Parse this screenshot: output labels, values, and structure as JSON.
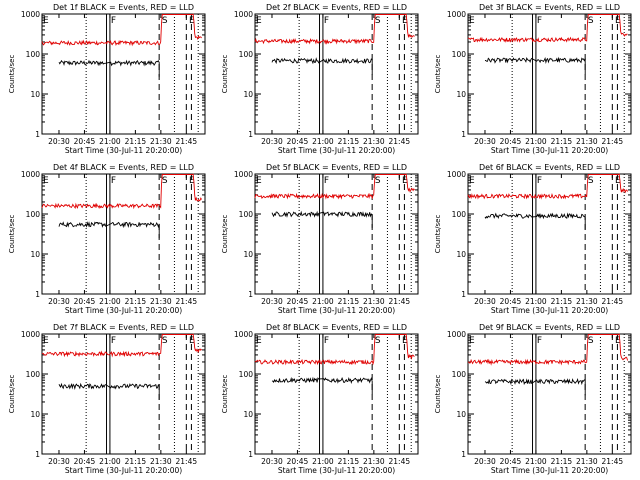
{
  "figure": {
    "background": "#ffffff",
    "axis_color": "#000000",
    "events_color": "#000000",
    "lld_color": "#e00000"
  },
  "chart_data": [
    {
      "type": "line",
      "title": "Det 1f BLACK = Events, RED = LLD",
      "xlabel": "Start Time (30-Jul-11 20:20:00)",
      "ylabel": "Counts/sec",
      "yscale": "log",
      "ylim": [
        1,
        1000
      ],
      "xticks": [
        "20:30",
        "20:45",
        "21:00",
        "21:15",
        "21:30",
        "21:45"
      ],
      "markers": {
        "dotted": [
          "20:46",
          "21:38",
          "21:52"
        ],
        "dashed": [
          "21:29",
          "21:45",
          "21:48"
        ],
        "solid": [
          "20:58",
          "21:00"
        ],
        "letters": [
          {
            "t": "E",
            "at": "20:20"
          },
          {
            "t": "F",
            "at": "21:00"
          },
          {
            "t": "S",
            "at": "21:30"
          },
          {
            "t": "E",
            "at": "21:46"
          }
        ]
      },
      "series": [
        {
          "name": "BLACK = Events",
          "values": {
            "start": "20:30",
            "end": "21:29",
            "level": 60
          }
        },
        {
          "name": "RED = LLD",
          "values": {
            "start": "20:20",
            "end": "21:54",
            "level": 190,
            "flare_peak": 1000,
            "flare_start": "21:30",
            "post": 260
          }
        }
      ]
    },
    {
      "type": "line",
      "title": "Det 2f BLACK = Events, RED = LLD",
      "xlabel": "Start Time (30-Jul-11 20:20:00)",
      "ylabel": "Counts/sec",
      "yscale": "log",
      "ylim": [
        1,
        1000
      ],
      "xticks": [
        "20:30",
        "20:45",
        "21:00",
        "21:15",
        "21:30",
        "21:45"
      ],
      "markers": {
        "dotted": [
          "20:46",
          "21:38",
          "21:52"
        ],
        "dashed": [
          "21:29",
          "21:45",
          "21:48"
        ],
        "solid": [
          "20:58",
          "21:00"
        ],
        "letters": [
          {
            "t": "E",
            "at": "20:20"
          },
          {
            "t": "F",
            "at": "21:00"
          },
          {
            "t": "S",
            "at": "21:30"
          },
          {
            "t": "E",
            "at": "21:46"
          }
        ]
      },
      "series": [
        {
          "name": "BLACK = Events",
          "values": {
            "start": "20:30",
            "end": "21:29",
            "level": 68
          }
        },
        {
          "name": "RED = LLD",
          "values": {
            "start": "20:20",
            "end": "21:54",
            "level": 210,
            "flare_peak": 1000,
            "flare_start": "21:30",
            "post": 280
          }
        }
      ]
    },
    {
      "type": "line",
      "title": "Det 3f BLACK = Events, RED = LLD",
      "xlabel": "Start Time (30-Jul-11 20:20:00)",
      "ylabel": "Counts/sec",
      "yscale": "log",
      "ylim": [
        1,
        1000
      ],
      "xticks": [
        "20:30",
        "20:45",
        "21:00",
        "21:15",
        "21:30",
        "21:45"
      ],
      "markers": {
        "dotted": [
          "20:46",
          "21:38",
          "21:52"
        ],
        "dashed": [
          "21:29",
          "21:45",
          "21:48"
        ],
        "solid": [
          "20:58",
          "21:00"
        ],
        "letters": [
          {
            "t": "E",
            "at": "20:20"
          },
          {
            "t": "F",
            "at": "21:00"
          },
          {
            "t": "S",
            "at": "21:30"
          },
          {
            "t": "E",
            "at": "21:46"
          }
        ]
      },
      "series": [
        {
          "name": "BLACK = Events",
          "values": {
            "start": "20:30",
            "end": "21:29",
            "level": 70
          }
        },
        {
          "name": "RED = LLD",
          "values": {
            "start": "20:20",
            "end": "21:54",
            "level": 230,
            "flare_peak": 1000,
            "flare_start": "21:30",
            "post": 300
          }
        }
      ]
    },
    {
      "type": "line",
      "title": "Det 4f BLACK = Events, RED = LLD",
      "xlabel": "Start Time (30-Jul-11 20:20:00)",
      "ylabel": "Counts/sec",
      "yscale": "log",
      "ylim": [
        1,
        1000
      ],
      "xticks": [
        "20:30",
        "20:45",
        "21:00",
        "21:15",
        "21:30",
        "21:45"
      ],
      "markers": {
        "dotted": [
          "20:46",
          "21:38",
          "21:52"
        ],
        "dashed": [
          "21:29",
          "21:45",
          "21:48"
        ],
        "solid": [
          "20:58",
          "21:00"
        ],
        "letters": [
          {
            "t": "E",
            "at": "20:20"
          },
          {
            "t": "F",
            "at": "21:00"
          },
          {
            "t": "S",
            "at": "21:30"
          },
          {
            "t": "E",
            "at": "21:46"
          }
        ]
      },
      "series": [
        {
          "name": "BLACK = Events",
          "values": {
            "start": "20:30",
            "end": "21:29",
            "level": 55
          }
        },
        {
          "name": "RED = LLD",
          "values": {
            "start": "20:20",
            "end": "21:54",
            "level": 160,
            "flare_peak": 1000,
            "flare_start": "21:30",
            "post": 230
          }
        }
      ]
    },
    {
      "type": "line",
      "title": "Det 5f BLACK = Events, RED = LLD",
      "xlabel": "Start Time (30-Jul-11 20:20:00)",
      "ylabel": "Counts/sec",
      "yscale": "log",
      "ylim": [
        1,
        1000
      ],
      "xticks": [
        "20:30",
        "20:45",
        "21:00",
        "21:15",
        "21:30",
        "21:45"
      ],
      "markers": {
        "dotted": [
          "20:46",
          "21:38",
          "21:52"
        ],
        "dashed": [
          "21:29",
          "21:45",
          "21:48"
        ],
        "solid": [
          "20:58",
          "21:00"
        ],
        "letters": [
          {
            "t": "E",
            "at": "20:20"
          },
          {
            "t": "F",
            "at": "21:00"
          },
          {
            "t": "S",
            "at": "21:30"
          },
          {
            "t": "E",
            "at": "21:46"
          }
        ]
      },
      "series": [
        {
          "name": "BLACK = Events",
          "values": {
            "start": "20:30",
            "end": "21:29",
            "level": 100
          }
        },
        {
          "name": "RED = LLD",
          "values": {
            "start": "20:20",
            "end": "21:54",
            "level": 280,
            "flare_peak": 1000,
            "flare_start": "21:30",
            "post": 400
          }
        }
      ]
    },
    {
      "type": "line",
      "title": "Det 6f BLACK = Events, RED = LLD",
      "xlabel": "Start Time (30-Jul-11 20:20:00)",
      "ylabel": "Counts/sec",
      "yscale": "log",
      "ylim": [
        1,
        1000
      ],
      "xticks": [
        "20:30",
        "20:45",
        "21:00",
        "21:15",
        "21:30",
        "21:45"
      ],
      "markers": {
        "dotted": [
          "20:46",
          "21:38",
          "21:52"
        ],
        "dashed": [
          "21:29",
          "21:45",
          "21:48"
        ],
        "solid": [
          "20:58",
          "21:00"
        ],
        "letters": [
          {
            "t": "E",
            "at": "20:20"
          },
          {
            "t": "F",
            "at": "21:00"
          },
          {
            "t": "S",
            "at": "21:30"
          },
          {
            "t": "E",
            "at": "21:46"
          }
        ]
      },
      "series": [
        {
          "name": "BLACK = Events",
          "values": {
            "start": "20:30",
            "end": "21:29",
            "level": 90
          }
        },
        {
          "name": "RED = LLD",
          "values": {
            "start": "20:20",
            "end": "21:54",
            "level": 280,
            "flare_peak": 1000,
            "flare_start": "21:30",
            "post": 380
          }
        }
      ]
    },
    {
      "type": "line",
      "title": "Det 7f BLACK = Events, RED = LLD",
      "xlabel": "Start Time (30-Jul-11 20:20:00)",
      "ylabel": "Counts/sec",
      "yscale": "log",
      "ylim": [
        1,
        1000
      ],
      "xticks": [
        "20:30",
        "20:45",
        "21:00",
        "21:15",
        "21:30",
        "21:45"
      ],
      "markers": {
        "dotted": [
          "20:46",
          "21:38",
          "21:52"
        ],
        "dashed": [
          "21:29",
          "21:45",
          "21:48"
        ],
        "solid": [
          "20:58",
          "21:00"
        ],
        "letters": [
          {
            "t": "E",
            "at": "20:20"
          },
          {
            "t": "F",
            "at": "21:00"
          },
          {
            "t": "S",
            "at": "21:30"
          },
          {
            "t": "E",
            "at": "21:46"
          }
        ]
      },
      "series": [
        {
          "name": "BLACK = Events",
          "values": {
            "start": "20:30",
            "end": "21:29",
            "level": 50
          }
        },
        {
          "name": "RED = LLD",
          "values": {
            "start": "20:20",
            "end": "21:54",
            "level": 320,
            "flare_peak": 1000,
            "flare_start": "21:30",
            "post": 400
          }
        }
      ]
    },
    {
      "type": "line",
      "title": "Det 8f BLACK = Events, RED = LLD",
      "xlabel": "Start Time (30-Jul-11 20:20:00)",
      "ylabel": "Counts/sec",
      "yscale": "log",
      "ylim": [
        1,
        1000
      ],
      "xticks": [
        "20:30",
        "20:45",
        "21:00",
        "21:15",
        "21:30",
        "21:45"
      ],
      "markers": {
        "dotted": [
          "20:46",
          "21:38",
          "21:52"
        ],
        "dashed": [
          "21:29",
          "21:45",
          "21:48"
        ],
        "solid": [
          "20:58",
          "21:00"
        ],
        "letters": [
          {
            "t": "E",
            "at": "20:20"
          },
          {
            "t": "F",
            "at": "21:00"
          },
          {
            "t": "S",
            "at": "21:30"
          },
          {
            "t": "E",
            "at": "21:46"
          }
        ]
      },
      "series": [
        {
          "name": "BLACK = Events",
          "values": {
            "start": "20:30",
            "end": "21:29",
            "level": 70
          }
        },
        {
          "name": "RED = LLD",
          "values": {
            "start": "20:20",
            "end": "21:54",
            "level": 200,
            "flare_peak": 1000,
            "flare_start": "21:30",
            "post": 270
          }
        }
      ]
    },
    {
      "type": "line",
      "title": "Det 9f BLACK = Events, RED = LLD",
      "xlabel": "Start Time (30-Jul-11 20:20:00)",
      "ylabel": "Counts/sec",
      "yscale": "log",
      "ylim": [
        1,
        1000
      ],
      "xticks": [
        "20:30",
        "20:45",
        "21:00",
        "21:15",
        "21:30",
        "21:45"
      ],
      "markers": {
        "dotted": [
          "20:46",
          "21:38",
          "21:52"
        ],
        "dashed": [
          "21:29",
          "21:45",
          "21:48"
        ],
        "solid": [
          "20:58",
          "21:00"
        ],
        "letters": [
          {
            "t": "E",
            "at": "20:20"
          },
          {
            "t": "F",
            "at": "21:00"
          },
          {
            "t": "S",
            "at": "21:30"
          },
          {
            "t": "E",
            "at": "21:46"
          }
        ]
      },
      "series": [
        {
          "name": "BLACK = Events",
          "values": {
            "start": "20:30",
            "end": "21:29",
            "level": 65
          }
        },
        {
          "name": "RED = LLD",
          "values": {
            "start": "20:20",
            "end": "21:54",
            "level": 200,
            "flare_peak": 1000,
            "flare_start": "21:30",
            "post": 240
          }
        }
      ]
    }
  ]
}
